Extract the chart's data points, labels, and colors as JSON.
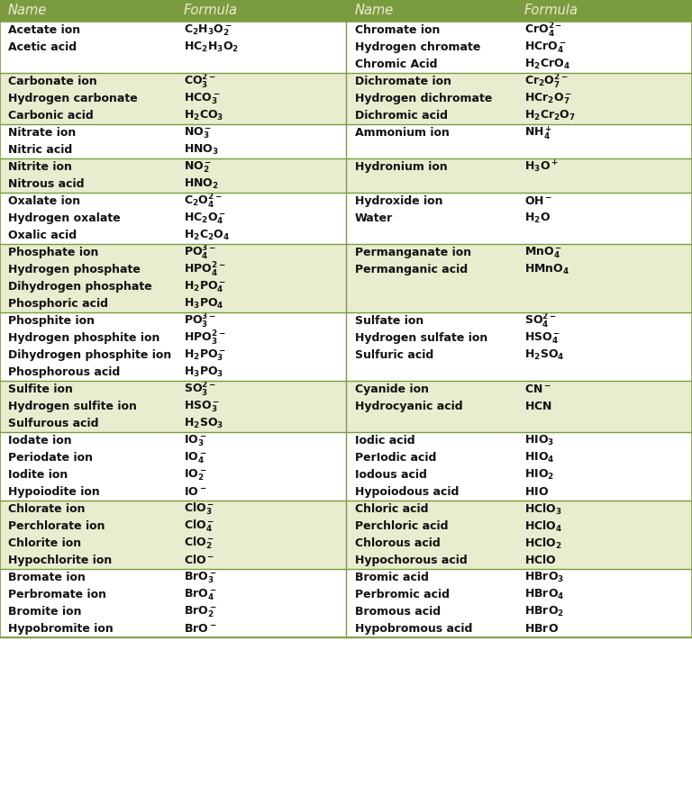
{
  "header_bg": "#7b9c3e",
  "header_text": "#f0ead8",
  "row_bg_light": "#ffffff",
  "row_bg_shaded": "#e8edcf",
  "border_color": "#7b9c3e",
  "text_color": "#111111",
  "col_headers": [
    "Name",
    "Formula",
    "Name",
    "Formula"
  ],
  "groups": [
    {
      "left_names": [
        "Acetate ion",
        "Acetic acid"
      ],
      "left_formulas": [
        "$\\mathbf{C_2H_3O_2^-}$",
        "$\\mathbf{HC_2H_3O_2}$"
      ],
      "right_names": [
        "Chromate ion",
        "Hydrogen chromate",
        "Chromic Acid"
      ],
      "right_formulas": [
        "$\\mathbf{CrO_4^{2-}}$",
        "$\\mathbf{HCrO_4^-}$",
        "$\\mathbf{H_2CrO_4}$"
      ],
      "shade": false
    },
    {
      "left_names": [
        "Carbonate ion",
        "Hydrogen carbonate",
        "Carbonic acid"
      ],
      "left_formulas": [
        "$\\mathbf{CO_3^{2-}}$",
        "$\\mathbf{HCO_3^-}$",
        "$\\mathbf{H_2CO_3}$"
      ],
      "right_names": [
        "Dichromate ion",
        "Hydrogen dichromate",
        "Dichromic acid"
      ],
      "right_formulas": [
        "$\\mathbf{Cr_2O_7^{2-}}$",
        "$\\mathbf{HCr_2O_7^-}$",
        "$\\mathbf{H_2Cr_2O_7}$"
      ],
      "shade": true
    },
    {
      "left_names": [
        "Nitrate ion",
        "Nitric acid"
      ],
      "left_formulas": [
        "$\\mathbf{NO_3^-}$",
        "$\\mathbf{HNO_3}$"
      ],
      "right_names": [
        "Ammonium ion"
      ],
      "right_formulas": [
        "$\\mathbf{NH_4^+}$"
      ],
      "shade": false
    },
    {
      "left_names": [
        "Nitrite ion",
        "Nitrous acid"
      ],
      "left_formulas": [
        "$\\mathbf{NO_2^-}$",
        "$\\mathbf{HNO_2}$"
      ],
      "right_names": [
        "Hydronium ion"
      ],
      "right_formulas": [
        "$\\mathbf{H_3O^+}$"
      ],
      "shade": true
    },
    {
      "left_names": [
        "Oxalate ion",
        "Hydrogen oxalate",
        "Oxalic acid"
      ],
      "left_formulas": [
        "$\\mathbf{C_2O_4^{2-}}$",
        "$\\mathbf{HC_2O_4^-}$",
        "$\\mathbf{H_2C_2O_4}$"
      ],
      "right_names": [
        "Hydroxide ion",
        "Water"
      ],
      "right_formulas": [
        "$\\mathbf{OH^-}$",
        "$\\mathbf{H_2O}$"
      ],
      "shade": false
    },
    {
      "left_names": [
        "Phosphate ion",
        "Hydrogen phosphate",
        "Dihydrogen phosphate",
        "Phosphoric acid"
      ],
      "left_formulas": [
        "$\\mathbf{PO_4^{3-}}$",
        "$\\mathbf{HPO_4^{2-}}$",
        "$\\mathbf{H_2PO_4^-}$",
        "$\\mathbf{H_3PO_4}$"
      ],
      "right_names": [
        "Permanganate ion",
        "Permanganic acid"
      ],
      "right_formulas": [
        "$\\mathbf{MnO_4^-}$",
        "$\\mathbf{HMnO_4}$"
      ],
      "shade": true
    },
    {
      "left_names": [
        "Phosphite ion",
        "Hydrogen phosphite ion",
        "Dihydrogen phosphite ion",
        "Phosphorous acid"
      ],
      "left_formulas": [
        "$\\mathbf{PO_3^{3-}}$",
        "$\\mathbf{HPO_3^{2-}}$",
        "$\\mathbf{H_2PO_3^-}$",
        "$\\mathbf{H_3PO_3}$"
      ],
      "right_names": [
        "Sulfate ion",
        "Hydrogen sulfate ion",
        "Sulfuric acid"
      ],
      "right_formulas": [
        "$\\mathbf{SO_4^{2-}}$",
        "$\\mathbf{HSO_4^-}$",
        "$\\mathbf{H_2SO_4}$"
      ],
      "shade": false
    },
    {
      "left_names": [
        "Sulfite ion",
        "Hydrogen sulfite ion",
        "Sulfurous acid"
      ],
      "left_formulas": [
        "$\\mathbf{SO_3^{2-}}$",
        "$\\mathbf{HSO_3^-}$",
        "$\\mathbf{H_2SO_3}$"
      ],
      "right_names": [
        "Cyanide ion",
        "Hydrocyanic acid"
      ],
      "right_formulas": [
        "$\\mathbf{CN^-}$",
        "$\\mathbf{HCN}$"
      ],
      "shade": true
    },
    {
      "left_names": [
        "Iodate ion",
        "Periodate ion",
        "Iodite ion",
        "Hypoiodite ion"
      ],
      "left_formulas": [
        "$\\mathbf{IO_3^-}$",
        "$\\mathbf{IO_4^-}$",
        "$\\mathbf{IO_2^-}$",
        "$\\mathbf{IO^-}$"
      ],
      "right_names": [
        "Iodic acid",
        "PerIodic acid",
        "Iodous acid",
        "Hypoiodous acid"
      ],
      "right_formulas": [
        "$\\mathbf{HIO_3}$",
        "$\\mathbf{HIO_4}$",
        "$\\mathbf{HIO_2}$",
        "$\\mathbf{HIO}$"
      ],
      "shade": false
    },
    {
      "left_names": [
        "Chlorate ion",
        "Perchlorate ion",
        "Chlorite ion",
        "Hypochlorite ion"
      ],
      "left_formulas": [
        "$\\mathbf{ClO_3^-}$",
        "$\\mathbf{ClO_4^-}$",
        "$\\mathbf{ClO_2^-}$",
        "$\\mathbf{ClO^-}$"
      ],
      "right_names": [
        "Chloric acid",
        "Perchloric acid",
        "Chlorous acid",
        "Hypochorous acid"
      ],
      "right_formulas": [
        "$\\mathbf{HClO_3}$",
        "$\\mathbf{HClO_4}$",
        "$\\mathbf{HClO_2}$",
        "$\\mathbf{HClO}$"
      ],
      "shade": true
    },
    {
      "left_names": [
        "Bromate ion",
        "Perbromate ion",
        "Bromite ion",
        "Hypobromite ion"
      ],
      "left_formulas": [
        "$\\mathbf{BrO_3^-}$",
        "$\\mathbf{BrO_4^-}$",
        "$\\mathbf{BrO_2^-}$",
        "$\\mathbf{BrO^-}$"
      ],
      "right_names": [
        "Bromic acid",
        "Perbromic acid",
        "Bromous acid",
        "Hypobromous acid"
      ],
      "right_formulas": [
        "$\\mathbf{HBrO_3}$",
        "$\\mathbf{HBrO_4}$",
        "$\\mathbf{HBrO_2}$",
        "$\\mathbf{HBrO}$"
      ],
      "shade": false
    }
  ]
}
